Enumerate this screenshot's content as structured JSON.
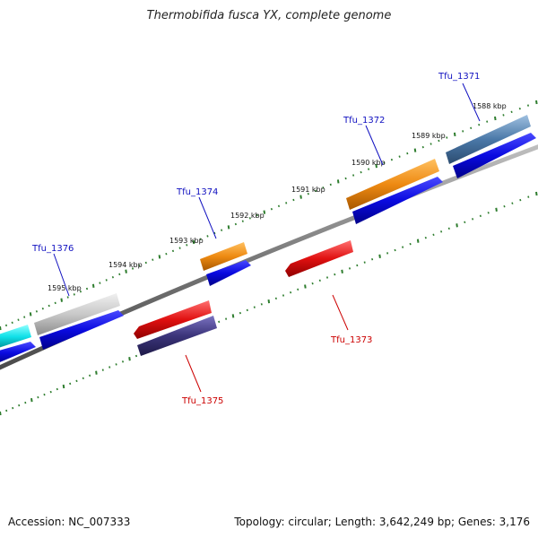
{
  "title": "Thermobifida fusca YX, complete genome",
  "footer": {
    "accession": "Accession: NC_007333",
    "summary": "Topology: circular; Length: 3,642,249 bp; Genes: 3,176"
  },
  "colors": {
    "backbone": "#808080",
    "tick": "#2e7d2e",
    "forward_label": "#1010c0",
    "reverse_label": "#cc0000",
    "cds": "#0a0ae0",
    "orange": "#ee8a12",
    "red": "#e01010",
    "steelblue": "#4a78a8",
    "lightgray": "#c8c8c8",
    "cyan": "#10e0e8",
    "purple": "#3b347a"
  },
  "kbp_labels": [
    "1588 kbp",
    "1589 kbp",
    "1590 kbp",
    "1591 kbp",
    "1592 kbp",
    "1593 kbp",
    "1594 kbp",
    "1595 kbp"
  ],
  "genes": [
    {
      "id": "Tfu_1371",
      "strand": "forward",
      "gene_color": "steelblue"
    },
    {
      "id": "Tfu_1372",
      "strand": "forward",
      "gene_color": "orange"
    },
    {
      "id": "Tfu_1373",
      "strand": "reverse",
      "gene_color": "red"
    },
    {
      "id": "Tfu_1374",
      "strand": "forward",
      "gene_color": "orange"
    },
    {
      "id": "Tfu_1375",
      "strand": "reverse",
      "gene_color": "red"
    },
    {
      "id": "Tfu_1376",
      "strand": "forward",
      "gene_color": "lightgray"
    }
  ]
}
